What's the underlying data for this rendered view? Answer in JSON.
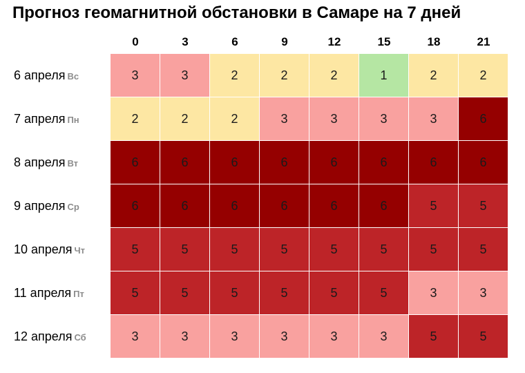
{
  "chart_data": {
    "type": "heatmap",
    "title": "Прогноз геомагнитной обстановки в Самаре на 7 дней",
    "columns": [
      "0",
      "3",
      "6",
      "9",
      "12",
      "15",
      "18",
      "21"
    ],
    "rows": [
      {
        "date": "6 апреля",
        "weekday": "Вс",
        "values": [
          3,
          3,
          2,
          2,
          2,
          1,
          2,
          2
        ]
      },
      {
        "date": "7 апреля",
        "weekday": "Пн",
        "values": [
          2,
          2,
          2,
          3,
          3,
          3,
          3,
          6
        ]
      },
      {
        "date": "8 апреля",
        "weekday": "Вт",
        "values": [
          6,
          6,
          6,
          6,
          6,
          6,
          6,
          6
        ]
      },
      {
        "date": "9 апреля",
        "weekday": "Ср",
        "values": [
          6,
          6,
          6,
          6,
          6,
          6,
          5,
          5
        ]
      },
      {
        "date": "10 апреля",
        "weekday": "Чт",
        "values": [
          5,
          5,
          5,
          5,
          5,
          5,
          5,
          5
        ]
      },
      {
        "date": "11 апреля",
        "weekday": "Пт",
        "values": [
          5,
          5,
          5,
          5,
          5,
          5,
          3,
          3
        ]
      },
      {
        "date": "12 апреля",
        "weekday": "Сб",
        "values": [
          3,
          3,
          3,
          3,
          3,
          3,
          5,
          5
        ]
      }
    ]
  },
  "colors": {
    "1": "#b5e6a3",
    "2": "#fde7a3",
    "3": "#f9a19f",
    "5": "#bd2428",
    "6": "#950000"
  }
}
